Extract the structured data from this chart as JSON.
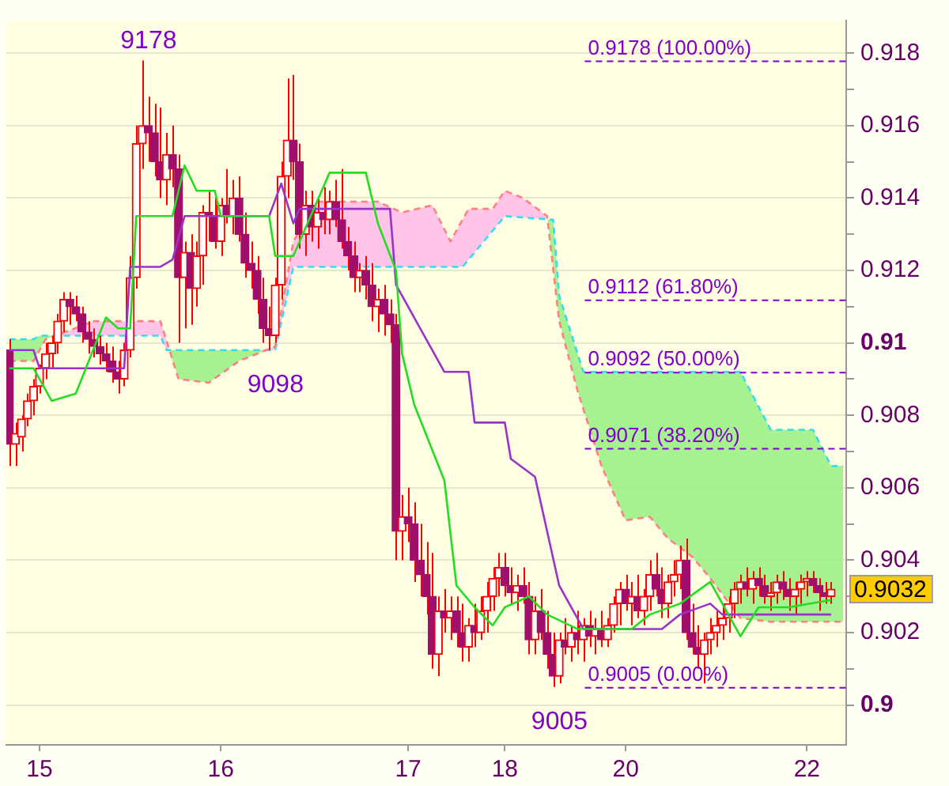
{
  "chart_data": {
    "type": "candlestick",
    "color": "#ff0000",
    "colors": [
      "#a0106a",
      "#ff0000",
      "#ff0000",
      "#ff0000",
      "#ff0000",
      "#ff0000",
      "#ff0000",
      "#ff0000",
      "#ff0000",
      "#ff0000",
      "#a0106a",
      "#a0106a",
      "#a0106a",
      "#a0106a",
      "#a0106a",
      "#a0106a",
      "#a0106a",
      "#a0106a",
      "#a0106a",
      "#ff0000",
      "#ff0000",
      "#ff0000",
      "#ff0000",
      "#a0106a",
      "#a0106a",
      "#a0106a",
      "#ff0000",
      "#a0106a",
      "#a0106a",
      "#ff0000",
      "#a0106a",
      "#ff0000",
      "#ff0000",
      "#a0106a",
      "#a0106a",
      "#ff0000",
      "#a0106a",
      "#ff0000",
      "#a0106a",
      "#a0106a",
      "#a0106a",
      "#a0106a",
      "#a0106a",
      "#a0106a",
      "#ff0000",
      "#ff0000",
      "#ff0000",
      "#a0106a",
      "#a0106a",
      "#ff0000",
      "#a0106a",
      "#ff0000",
      "#a0106a",
      "#ff0000",
      "#a0106a",
      "#a0106a",
      "#a0106a",
      "#a0106a",
      "#ff0000",
      "#a0106a",
      "#a0106a",
      "#ff0000",
      "#a0106a",
      "#a0106a",
      "#a0106a",
      "#ff0000",
      "#a0106a",
      "#a0106a",
      "#a0106a",
      "#a0106a",
      "#a0106a",
      "#ff0000",
      "#a0106a",
      "#ff0000",
      "#a0106a",
      "#a0106a",
      "#ff0000",
      "#a0106a",
      "#ff0000",
      "#ff0000",
      "#ff0000",
      "#ff0000",
      "#a0106a",
      "#a0106a",
      "#ff0000",
      "#a0106a",
      "#a0106a",
      "#ff0000",
      "#a0106a",
      "#a0106a",
      "#a0106a",
      "#ff0000",
      "#a0106a",
      "#ff0000",
      "#a0106a",
      "#ff0000",
      "#a0106a",
      "#ff0000",
      "#a0106a",
      "#ff0000",
      "#ff0000",
      "#ff0000",
      "#a0106a",
      "#ff0000",
      "#a0106a",
      "#ff0000",
      "#ff0000",
      "#a0106a",
      "#a0106a",
      "#ff0000",
      "#ff0000",
      "#ff0000",
      "#a0106a",
      "#a0106a",
      "#a0106a",
      "#ff0000",
      "#ff0000",
      "#ff0000",
      "#ff0000",
      "#ff0000",
      "#ff0000",
      "#ff0000",
      "#a0106a",
      "#ff0000",
      "#a0106a",
      "#a0106a",
      "#ff0000",
      "#ff0000",
      "#a0106a",
      "#a0106a",
      "#ff0000",
      "#ff0000",
      "#ff0000",
      "#a0106a",
      "#a0106a",
      "#a0106a",
      "#ff0000",
      null,
      null
    ],
    "categories": [
      null,
      null,
      null,
      null,
      null,
      "15",
      null,
      null,
      null,
      null,
      null,
      null,
      null,
      null,
      null,
      null,
      null,
      null,
      null,
      null,
      null,
      null,
      null,
      null,
      null,
      null,
      null,
      null,
      null,
      null,
      null,
      null,
      null,
      null,
      null,
      "16",
      null,
      null,
      null,
      null,
      null,
      null,
      null,
      null,
      null,
      null,
      null,
      null,
      null,
      null,
      null,
      null,
      null,
      null,
      null,
      null,
      null,
      null,
      null,
      null,
      null,
      null,
      null,
      null,
      null,
      null,
      "17",
      null,
      null,
      null,
      null,
      null,
      null,
      null,
      null,
      null,
      null,
      null,
      null,
      null,
      null,
      null,
      "18",
      null,
      null,
      null,
      null,
      null,
      null,
      null,
      null,
      null,
      null,
      null,
      null,
      null,
      null,
      null,
      null,
      null,
      null,
      null,
      "20",
      null,
      null,
      null,
      null,
      null,
      null,
      null,
      null,
      null,
      null,
      null,
      null,
      null,
      null,
      null,
      null,
      null,
      null,
      null,
      null,
      null,
      null,
      null,
      null,
      null,
      null,
      null,
      null,
      null,
      "22",
      null,
      null,
      null,
      null,
      null,
      null
    ],
    "ohlc": [
      [
        0.9098,
        0.9101,
        0.9066,
        0.9072
      ],
      [
        0.9072,
        0.9078,
        0.9066,
        0.9075
      ],
      [
        0.9074,
        0.908,
        0.907,
        0.9079
      ],
      [
        0.9079,
        0.9086,
        0.9077,
        0.9084
      ],
      [
        0.9084,
        0.909,
        0.908,
        0.9088
      ],
      [
        0.9088,
        0.9094,
        0.9086,
        0.9093
      ],
      [
        0.9093,
        0.91,
        0.909,
        0.9097
      ],
      [
        0.9097,
        0.9102,
        0.9093,
        0.91
      ],
      [
        0.91,
        0.9108,
        0.9097,
        0.9106
      ],
      [
        0.9106,
        0.9114,
        0.9103,
        0.9112
      ],
      [
        0.9112,
        0.9114,
        0.9105,
        0.911
      ],
      [
        0.911,
        0.9113,
        0.9106,
        0.9108
      ],
      [
        0.9108,
        0.911,
        0.91,
        0.9103
      ],
      [
        0.9103,
        0.9106,
        0.9097,
        0.9101
      ],
      [
        0.9101,
        0.9104,
        0.9096,
        0.9099
      ],
      [
        0.9099,
        0.9102,
        0.9094,
        0.9097
      ],
      [
        0.9097,
        0.91,
        0.9092,
        0.9095
      ],
      [
        0.9095,
        0.9099,
        0.9089,
        0.9092
      ],
      [
        0.9092,
        0.9095,
        0.9086,
        0.909
      ],
      [
        0.909,
        0.91,
        0.9088,
        0.9098
      ],
      [
        0.9098,
        0.9124,
        0.9096,
        0.9118
      ],
      [
        0.9118,
        0.916,
        0.9115,
        0.9155
      ],
      [
        0.9155,
        0.9178,
        0.9148,
        0.916
      ],
      [
        0.916,
        0.9168,
        0.915,
        0.9158
      ],
      [
        0.9158,
        0.9166,
        0.9146,
        0.915
      ],
      [
        0.915,
        0.9165,
        0.914,
        0.9145
      ],
      [
        0.9145,
        0.9158,
        0.9138,
        0.9152
      ],
      [
        0.9152,
        0.916,
        0.9143,
        0.9148
      ],
      [
        0.9148,
        0.9152,
        0.91,
        0.9118
      ],
      [
        0.9118,
        0.9128,
        0.9104,
        0.9125
      ],
      [
        0.9125,
        0.913,
        0.9105,
        0.9115
      ],
      [
        0.9115,
        0.9128,
        0.911,
        0.9124
      ],
      [
        0.9124,
        0.9138,
        0.9116,
        0.9136
      ],
      [
        0.9136,
        0.9142,
        0.9128,
        0.9135
      ],
      [
        0.9135,
        0.914,
        0.9126,
        0.9128
      ],
      [
        0.9128,
        0.914,
        0.9124,
        0.9138
      ],
      [
        0.9138,
        0.9148,
        0.9133,
        0.9135
      ],
      [
        0.9135,
        0.9145,
        0.913,
        0.914
      ],
      [
        0.914,
        0.9146,
        0.9128,
        0.913
      ],
      [
        0.913,
        0.9136,
        0.9118,
        0.9122
      ],
      [
        0.9122,
        0.9128,
        0.9115,
        0.912
      ],
      [
        0.912,
        0.9124,
        0.9108,
        0.9112
      ],
      [
        0.9112,
        0.9118,
        0.91,
        0.9104
      ],
      [
        0.9104,
        0.911,
        0.9098,
        0.9102
      ],
      [
        0.9102,
        0.9118,
        0.91,
        0.9116
      ],
      [
        0.9116,
        0.915,
        0.9112,
        0.9146
      ],
      [
        0.9146,
        0.9173,
        0.914,
        0.9156
      ],
      [
        0.9156,
        0.9174,
        0.9145,
        0.915
      ],
      [
        0.915,
        0.9155,
        0.9126,
        0.913
      ],
      [
        0.913,
        0.9142,
        0.9124,
        0.9138
      ],
      [
        0.9138,
        0.9142,
        0.9128,
        0.9132
      ],
      [
        0.9132,
        0.914,
        0.9126,
        0.9136
      ],
      [
        0.9136,
        0.9143,
        0.913,
        0.9134
      ],
      [
        0.9134,
        0.9142,
        0.913,
        0.9139
      ],
      [
        0.9139,
        0.9145,
        0.9132,
        0.9134
      ],
      [
        0.9134,
        0.9148,
        0.9126,
        0.9128
      ],
      [
        0.9128,
        0.9132,
        0.912,
        0.9124
      ],
      [
        0.9124,
        0.9128,
        0.9114,
        0.9118
      ],
      [
        0.9118,
        0.9122,
        0.9114,
        0.912
      ],
      [
        0.912,
        0.9124,
        0.9112,
        0.9116
      ],
      [
        0.9116,
        0.9122,
        0.9106,
        0.911
      ],
      [
        0.911,
        0.9115,
        0.9103,
        0.9112
      ],
      [
        0.9112,
        0.9116,
        0.9102,
        0.9108
      ],
      [
        0.9108,
        0.9112,
        0.91,
        0.9105
      ],
      [
        0.9105,
        0.9108,
        0.904,
        0.9048
      ],
      [
        0.9048,
        0.9058,
        0.904,
        0.9052
      ],
      [
        0.9052,
        0.906,
        0.9045,
        0.905
      ],
      [
        0.905,
        0.9056,
        0.9034,
        0.904
      ],
      [
        0.904,
        0.905,
        0.903,
        0.9036
      ],
      [
        0.9036,
        0.9045,
        0.9025,
        0.903
      ],
      [
        0.903,
        0.9042,
        0.901,
        0.9014
      ],
      [
        0.9014,
        0.903,
        0.9008,
        0.9026
      ],
      [
        0.9026,
        0.9032,
        0.902,
        0.9024
      ],
      [
        0.9024,
        0.903,
        0.9018,
        0.9026
      ],
      [
        0.9026,
        0.903,
        0.9016,
        0.902
      ],
      [
        0.902,
        0.9028,
        0.9012,
        0.9016
      ],
      [
        0.9016,
        0.9024,
        0.9012,
        0.9022
      ],
      [
        0.9022,
        0.9028,
        0.9016,
        0.902
      ],
      [
        0.902,
        0.903,
        0.9018,
        0.9026
      ],
      [
        0.9026,
        0.9034,
        0.902,
        0.903
      ],
      [
        0.903,
        0.9038,
        0.9026,
        0.9035
      ],
      [
        0.9035,
        0.9042,
        0.903,
        0.9038
      ],
      [
        0.9038,
        0.9042,
        0.903,
        0.9033
      ],
      [
        0.9033,
        0.9038,
        0.9028,
        0.9031
      ],
      [
        0.9031,
        0.9036,
        0.9026,
        0.9033
      ],
      [
        0.9033,
        0.9038,
        0.9028,
        0.903
      ],
      [
        0.903,
        0.9034,
        0.9014,
        0.9018
      ],
      [
        0.9018,
        0.903,
        0.9014,
        0.9026
      ],
      [
        0.9026,
        0.9032,
        0.9018,
        0.902
      ],
      [
        0.902,
        0.9026,
        0.901,
        0.9014
      ],
      [
        0.9014,
        0.902,
        0.9005,
        0.9008
      ],
      [
        0.9008,
        0.902,
        0.9006,
        0.9018
      ],
      [
        0.9018,
        0.9024,
        0.9014,
        0.9016
      ],
      [
        0.9016,
        0.9022,
        0.9012,
        0.902
      ],
      [
        0.902,
        0.9026,
        0.9014,
        0.9018
      ],
      [
        0.9018,
        0.9024,
        0.9012,
        0.9022
      ],
      [
        0.9022,
        0.9026,
        0.9016,
        0.9019
      ],
      [
        0.9019,
        0.9024,
        0.9014,
        0.9021
      ],
      [
        0.9021,
        0.9026,
        0.9016,
        0.9018
      ],
      [
        0.9018,
        0.9024,
        0.9016,
        0.9022
      ],
      [
        0.9022,
        0.903,
        0.902,
        0.9028
      ],
      [
        0.9028,
        0.9034,
        0.9022,
        0.9032
      ],
      [
        0.9032,
        0.9036,
        0.9026,
        0.9028
      ],
      [
        0.9028,
        0.9034,
        0.9022,
        0.903
      ],
      [
        0.903,
        0.9036,
        0.9024,
        0.9026
      ],
      [
        0.9026,
        0.9032,
        0.9022,
        0.903
      ],
      [
        0.903,
        0.904,
        0.9026,
        0.9036
      ],
      [
        0.9036,
        0.9042,
        0.903,
        0.9032
      ],
      [
        0.9032,
        0.9038,
        0.9024,
        0.9028
      ],
      [
        0.9028,
        0.9036,
        0.9024,
        0.9034
      ],
      [
        0.9034,
        0.904,
        0.903,
        0.9036
      ],
      [
        0.9036,
        0.9044,
        0.9032,
        0.904
      ],
      [
        0.904,
        0.9046,
        0.9018,
        0.902
      ],
      [
        0.902,
        0.9028,
        0.9014,
        0.9016
      ],
      [
        0.9016,
        0.9022,
        0.901,
        0.9014
      ],
      [
        0.9014,
        0.902,
        0.9006,
        0.9018
      ],
      [
        0.9018,
        0.9024,
        0.9014,
        0.902
      ],
      [
        0.902,
        0.9026,
        0.9016,
        0.9022
      ],
      [
        0.9022,
        0.9028,
        0.9018,
        0.9024
      ],
      [
        0.9024,
        0.903,
        0.902,
        0.9028
      ],
      [
        0.9028,
        0.9034,
        0.9024,
        0.9032
      ],
      [
        0.9032,
        0.9036,
        0.9028,
        0.9034
      ],
      [
        0.9034,
        0.9038,
        0.903,
        0.9032
      ],
      [
        0.9032,
        0.9037,
        0.9028,
        0.9035
      ],
      [
        0.9035,
        0.9038,
        0.903,
        0.9033
      ],
      [
        0.9033,
        0.9036,
        0.9028,
        0.903
      ],
      [
        0.903,
        0.9034,
        0.9026,
        0.9031
      ],
      [
        0.9031,
        0.9036,
        0.9028,
        0.9034
      ],
      [
        0.9034,
        0.9037,
        0.9029,
        0.9032
      ],
      [
        0.9032,
        0.9035,
        0.9026,
        0.903
      ],
      [
        0.903,
        0.9034,
        0.9025,
        0.9032
      ],
      [
        0.9032,
        0.9036,
        0.9028,
        0.9034
      ],
      [
        0.9034,
        0.9037,
        0.903,
        0.9035
      ],
      [
        0.9035,
        0.9037,
        0.9031,
        0.9033
      ],
      [
        0.9033,
        0.9035,
        0.9026,
        0.9031
      ],
      [
        0.9031,
        0.9034,
        0.9028,
        0.903
      ],
      [
        0.903,
        0.9034,
        0.9028,
        0.9032
      ],
      null,
      null
    ],
    "series": [
      {
        "type": "line",
        "color": "#22dd22",
        "values": [
          0.9093,
          null,
          null,
          null,
          0.9093,
          null,
          null,
          0.9084,
          null,
          null,
          null,
          0.9086,
          null,
          null,
          null,
          null,
          0.9107,
          null,
          0.9104,
          null,
          0.9104,
          0.9135,
          null,
          null,
          null,
          null,
          null,
          0.9135,
          null,
          0.9149,
          null,
          0.9142,
          null,
          null,
          0.9142,
          0.9135,
          null,
          null,
          null,
          null,
          null,
          null,
          null,
          0.9135,
          0.9124,
          null,
          null,
          0.9124,
          null,
          null,
          null,
          null,
          null,
          0.9147,
          null,
          null,
          null,
          null,
          null,
          0.9147,
          null,
          0.9133,
          null,
          null,
          0.912,
          0.9097,
          null,
          0.9083,
          null,
          null,
          null,
          null,
          0.9062,
          null,
          0.9033,
          null,
          null,
          0.9027,
          null,
          null,
          0.9022,
          null,
          0.9027,
          null,
          null,
          null,
          0.903,
          null,
          null,
          0.9025,
          null,
          null,
          null,
          null,
          0.9021,
          null,
          null,
          null,
          null,
          null,
          null,
          null,
          null,
          0.9021,
          null,
          null,
          0.9025,
          null,
          null,
          null,
          null,
          0.9028,
          null,
          null,
          null,
          null,
          0.9034,
          null,
          0.9028,
          null,
          null,
          0.9019,
          null,
          null,
          0.9027,
          null,
          null,
          null,
          null,
          0.9027,
          null,
          null,
          null,
          null,
          null,
          null,
          0.9029,
          null,
          null
        ]
      },
      {
        "type": "line",
        "color": "#9933cc",
        "values": [
          0.9098,
          null,
          null,
          null,
          0.9098,
          0.9093,
          null,
          null,
          null,
          null,
          null,
          null,
          null,
          null,
          null,
          null,
          null,
          null,
          null,
          0.9093,
          0.9121,
          null,
          null,
          null,
          null,
          0.9121,
          null,
          0.9123,
          null,
          0.9135,
          null,
          null,
          null,
          null,
          null,
          null,
          null,
          null,
          null,
          null,
          null,
          null,
          null,
          0.9135,
          null,
          0.9144,
          null,
          0.9133,
          0.9137,
          null,
          null,
          null,
          null,
          null,
          null,
          null,
          null,
          null,
          null,
          null,
          null,
          null,
          null,
          0.9137,
          0.9116,
          null,
          null,
          null,
          0.9104,
          null,
          null,
          null,
          0.9092,
          null,
          null,
          null,
          0.9092,
          0.9078,
          null,
          null,
          null,
          null,
          0.9078,
          0.9068,
          null,
          null,
          null,
          0.9063,
          null,
          null,
          null,
          0.9033,
          null,
          null,
          null,
          0.9021,
          null,
          null,
          null,
          null,
          null,
          null,
          null,
          null,
          null,
          null,
          null,
          null,
          0.9021,
          null,
          null,
          0.9025,
          null,
          null,
          null,
          null,
          0.9028,
          null,
          0.9025,
          null,
          null,
          null,
          null,
          null,
          null,
          null,
          null,
          null,
          null,
          null,
          null,
          null,
          null,
          null,
          null,
          null,
          0.9025,
          null,
          null
        ]
      },
      {
        "type": "line",
        "color": "#33ddee",
        "line_style": "dashed",
        "values": [
          0.9101,
          null,
          null,
          null,
          0.9101,
          0.9102,
          null,
          null,
          null,
          null,
          null,
          null,
          null,
          null,
          null,
          null,
          null,
          null,
          null,
          null,
          null,
          null,
          null,
          null,
          null,
          0.9102,
          0.9098,
          null,
          null,
          null,
          null,
          null,
          null,
          null,
          null,
          null,
          null,
          null,
          null,
          null,
          null,
          null,
          null,
          null,
          0.9098,
          null,
          null,
          0.9121,
          null,
          null,
          null,
          null,
          null,
          null,
          null,
          null,
          null,
          null,
          null,
          null,
          null,
          null,
          null,
          null,
          null,
          null,
          null,
          null,
          null,
          null,
          null,
          null,
          null,
          null,
          null,
          0.9121,
          null,
          null,
          null,
          null,
          null,
          null,
          0.9135,
          null,
          null,
          null,
          null,
          null,
          null,
          null,
          0.9134,
          0.9113,
          null,
          null,
          null,
          0.9092,
          null,
          null,
          null,
          null,
          null,
          null,
          null,
          null,
          null,
          null,
          null,
          null,
          null,
          null,
          null,
          null,
          null,
          null,
          null,
          null,
          null,
          null,
          null,
          null,
          null,
          0.9092,
          null,
          null,
          null,
          null,
          0.9076,
          null,
          null,
          null,
          null,
          null,
          null,
          0.9076,
          null,
          null,
          0.9066,
          null,
          0.9066
        ]
      },
      {
        "type": "line",
        "color": "#ff8080",
        "line_style": "dashed",
        "values": [
          0.9095,
          null,
          null,
          null,
          0.9095,
          null,
          0.9101,
          null,
          null,
          null,
          null,
          null,
          null,
          null,
          0.9106,
          null,
          null,
          null,
          null,
          null,
          null,
          null,
          null,
          null,
          null,
          0.9106,
          null,
          null,
          0.909,
          null,
          null,
          null,
          null,
          0.9089,
          null,
          null,
          null,
          null,
          0.9095,
          null,
          null,
          null,
          null,
          null,
          0.9099,
          null,
          null,
          0.9128,
          null,
          null,
          null,
          0.9139,
          null,
          null,
          null,
          null,
          null,
          null,
          null,
          null,
          null,
          0.9139,
          null,
          null,
          null,
          0.9136,
          null,
          null,
          null,
          null,
          0.9138,
          null,
          null,
          0.9128,
          null,
          null,
          0.9137,
          null,
          null,
          null,
          0.9137,
          null,
          0.9142,
          null,
          null,
          0.914,
          null,
          null,
          null,
          0.9135,
          null,
          0.9106,
          null,
          null,
          0.9087,
          null,
          null,
          null,
          0.9066,
          null,
          null,
          null,
          0.9051,
          null,
          null,
          null,
          0.9052,
          null,
          null,
          0.9046,
          null,
          null,
          null,
          0.9041,
          null,
          null,
          0.9035,
          null,
          null,
          null,
          null,
          0.9024,
          null,
          null,
          null,
          null,
          0.9023,
          null,
          null,
          null,
          null,
          null,
          null,
          null,
          null,
          null,
          null,
          null,
          0.9023
        ]
      }
    ],
    "ylim": [
      0.8989,
      0.9189
    ],
    "yticks": [
      0.9,
      {
        "value": 0.901,
        "label": null
      },
      0.902,
      {
        "value": 0.903,
        "label": null
      },
      0.904,
      {
        "value": 0.905,
        "label": null
      },
      0.906,
      {
        "value": 0.907,
        "label": null
      },
      0.908,
      {
        "value": 0.909,
        "label": null
      },
      0.91,
      {
        "value": 0.911,
        "label": null
      },
      0.912,
      {
        "value": 0.913,
        "label": null
      },
      0.914,
      {
        "value": 0.915,
        "label": null
      },
      0.916,
      {
        "value": 0.917,
        "label": null
      },
      0.918
    ],
    "grid": "y",
    "legend": false,
    "marker": "none",
    "ref_lines": [
      {
        "axis": "y",
        "value": 0.9178,
        "label": "0.9178 (100.00%)",
        "color": "#8000cc",
        "line_style": "dashed"
      },
      {
        "axis": "y",
        "value": 0.9112,
        "label": "0.9112 (61.80%)",
        "color": "#8000cc",
        "line_style": "dashed"
      },
      {
        "axis": "y",
        "value": 0.9092,
        "label": "0.9092 (50.00%)",
        "color": "#8000cc",
        "line_style": "dashed"
      },
      {
        "axis": "y",
        "value": 0.9071,
        "label": "0.9071 (38.20%)",
        "color": "#8000cc",
        "line_style": "dashed"
      },
      {
        "axis": "y",
        "value": 0.9005,
        "label": "0.9005 (0.00%)",
        "color": "#8000cc",
        "line_style": "dashed"
      }
    ],
    "annotations": [
      {
        "text": "9178",
        "y": 0.9178
      },
      {
        "text": "9098",
        "y": 0.9098
      },
      {
        "text": "9005",
        "y": 0.9005
      },
      "0.9032"
    ]
  }
}
